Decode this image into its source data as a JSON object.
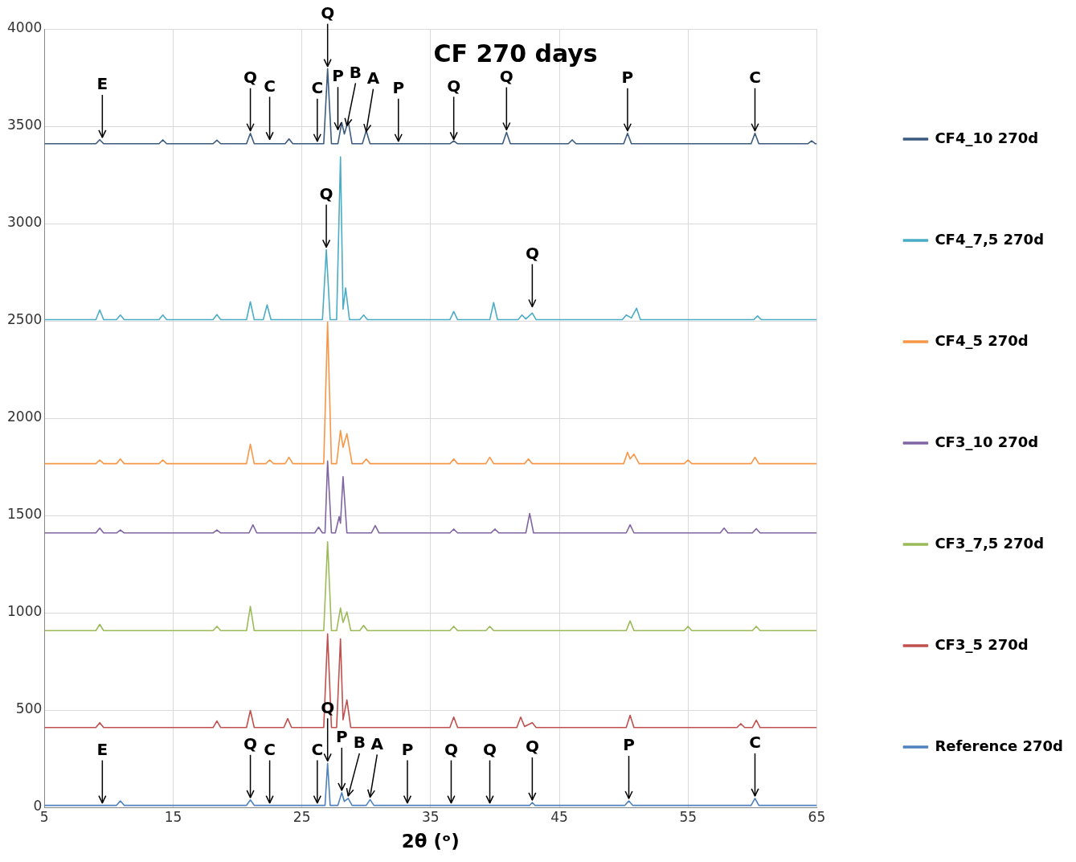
{
  "chart_data": {
    "type": "line",
    "title": "CF 270 days",
    "xlabel": "2θ (ᵒ)",
    "xlim": [
      5,
      65
    ],
    "xticks": [
      5,
      15,
      25,
      35,
      45,
      55,
      65
    ],
    "ylim": [
      0,
      4000
    ],
    "yticks": [
      0,
      500,
      1000,
      1500,
      2000,
      2500,
      3000,
      3500,
      4000
    ],
    "grid": true,
    "legend": "right",
    "marker": "none",
    "line_style": "solid",
    "series": [
      {
        "name": "CF4_10 270d",
        "color": "#3b5a7f",
        "x": [
          5,
          9.0,
          9.3,
          9.6,
          13.9,
          14.2,
          14.5,
          18.1,
          18.4,
          18.7,
          20.7,
          21.0,
          21.3,
          23.7,
          24.0,
          24.3,
          26.7,
          27.0,
          27.3,
          27.8,
          28.1,
          28.3,
          28.6,
          28.9,
          29.7,
          30.0,
          30.3,
          36.5,
          36.8,
          37.1,
          40.6,
          40.9,
          41.2,
          45.7,
          46.0,
          46.3,
          50.0,
          50.3,
          50.6,
          59.9,
          60.2,
          60.5,
          64.3,
          64.6,
          64.9,
          65
        ],
        "values": [
          3410,
          3410,
          3431,
          3410,
          3410,
          3430,
          3410,
          3410,
          3428,
          3410,
          3410,
          3464,
          3410,
          3410,
          3435,
          3410,
          3410,
          3795,
          3410,
          3410,
          3519,
          3460,
          3527,
          3410,
          3410,
          3477,
          3410,
          3410,
          3425,
          3410,
          3410,
          3469,
          3410,
          3410,
          3430,
          3410,
          3410,
          3464,
          3410,
          3410,
          3464,
          3410,
          3410,
          3425,
          3410,
          3410
        ]
      },
      {
        "name": "CF4_7,5 270d",
        "color": "#4bacc6",
        "x": [
          5,
          9.0,
          9.3,
          9.6,
          10.6,
          10.9,
          11.2,
          13.9,
          14.2,
          14.5,
          18.1,
          18.4,
          18.7,
          20.7,
          21.0,
          21.3,
          22.0,
          22.3,
          22.6,
          26.6,
          26.9,
          27.2,
          27.7,
          28.0,
          28.2,
          28.4,
          28.7,
          29.5,
          29.8,
          30.1,
          36.5,
          36.8,
          37.1,
          39.6,
          39.9,
          40.2,
          41.8,
          42.1,
          42.4,
          42.9,
          43.2,
          49.9,
          50.2,
          50.6,
          51.0,
          51.3,
          60.1,
          60.4,
          60.7,
          65
        ],
        "values": [
          2506,
          2506,
          2556,
          2506,
          2506,
          2530,
          2506,
          2506,
          2530,
          2506,
          2506,
          2532,
          2506,
          2506,
          2598,
          2506,
          2506,
          2582,
          2506,
          2506,
          2866,
          2506,
          2506,
          3343,
          2560,
          2669,
          2506,
          2506,
          2530,
          2506,
          2506,
          2548,
          2506,
          2506,
          2594,
          2506,
          2506,
          2530,
          2510,
          2540,
          2506,
          2506,
          2530,
          2515,
          2565,
          2506,
          2506,
          2525,
          2506,
          2506
        ]
      },
      {
        "name": "CF4_5 270d",
        "color": "#f79646",
        "x": [
          5,
          9.0,
          9.3,
          9.6,
          10.6,
          10.9,
          11.2,
          13.9,
          14.2,
          14.5,
          20.7,
          21.0,
          21.3,
          22.2,
          22.5,
          22.8,
          23.7,
          24.0,
          24.3,
          26.7,
          27.0,
          27.3,
          27.7,
          28.0,
          28.2,
          28.5,
          28.9,
          29.7,
          30.0,
          30.3,
          36.5,
          36.8,
          37.1,
          39.3,
          39.6,
          39.9,
          42.3,
          42.6,
          42.9,
          50.0,
          50.3,
          50.5,
          50.8,
          51.2,
          54.7,
          55.0,
          55.3,
          59.9,
          60.2,
          60.5,
          65
        ],
        "values": [
          1766,
          1766,
          1785,
          1766,
          1766,
          1790,
          1766,
          1766,
          1785,
          1766,
          1766,
          1866,
          1766,
          1766,
          1785,
          1766,
          1766,
          1799,
          1766,
          1766,
          2494,
          1766,
          1766,
          1937,
          1850,
          1920,
          1766,
          1766,
          1790,
          1766,
          1766,
          1790,
          1766,
          1766,
          1799,
          1766,
          1766,
          1790,
          1766,
          1766,
          1824,
          1790,
          1815,
          1766,
          1766,
          1785,
          1766,
          1766,
          1799,
          1766,
          1766
        ]
      },
      {
        "name": "CF3_10 270d",
        "color": "#8064a2",
        "x": [
          5,
          9.0,
          9.3,
          9.6,
          10.6,
          10.9,
          11.2,
          18.1,
          18.4,
          18.7,
          20.9,
          21.2,
          21.5,
          26.0,
          26.3,
          26.6,
          26.8,
          27.0,
          27.3,
          27.6,
          27.9,
          28.0,
          28.2,
          28.5,
          30.4,
          30.7,
          31.0,
          36.5,
          36.8,
          37.1,
          39.7,
          40.0,
          40.3,
          42.4,
          42.7,
          43.0,
          50.2,
          50.5,
          50.8,
          57.5,
          57.8,
          58.1,
          60.0,
          60.3,
          60.6,
          65
        ],
        "values": [
          1410,
          1410,
          1435,
          1410,
          1410,
          1425,
          1410,
          1410,
          1425,
          1410,
          1410,
          1452,
          1410,
          1410,
          1440,
          1410,
          1410,
          1780,
          1410,
          1410,
          1494,
          1460,
          1699,
          1410,
          1410,
          1448,
          1410,
          1410,
          1430,
          1410,
          1410,
          1430,
          1410,
          1410,
          1510,
          1410,
          1410,
          1452,
          1410,
          1410,
          1435,
          1410,
          1410,
          1432,
          1410,
          1410
        ]
      },
      {
        "name": "CF3_7,5 270d",
        "color": "#9bbb59",
        "x": [
          5,
          9.0,
          9.3,
          9.6,
          18.1,
          18.4,
          18.7,
          20.7,
          21.0,
          21.3,
          26.7,
          27.0,
          27.3,
          27.7,
          28.0,
          28.2,
          28.5,
          28.8,
          29.5,
          29.8,
          30.1,
          36.5,
          36.8,
          37.1,
          39.3,
          39.6,
          39.9,
          50.2,
          50.5,
          50.8,
          54.7,
          55.0,
          55.3,
          60.0,
          60.3,
          60.6,
          65
        ],
        "values": [
          908,
          908,
          940,
          908,
          908,
          930,
          908,
          908,
          1033,
          908,
          908,
          1364,
          908,
          908,
          1025,
          950,
          1004,
          908,
          908,
          935,
          908,
          908,
          930,
          908,
          908,
          930,
          908,
          908,
          958,
          908,
          908,
          930,
          908,
          908,
          930,
          908,
          908
        ]
      },
      {
        "name": "CF3_5 270d",
        "color": "#c0504d",
        "x": [
          5,
          9.0,
          9.3,
          9.6,
          18.1,
          18.4,
          18.7,
          20.7,
          21.0,
          21.3,
          23.6,
          23.9,
          24.2,
          26.7,
          27.0,
          27.3,
          27.7,
          28.0,
          28.2,
          28.5,
          28.8,
          36.5,
          36.8,
          37.1,
          41.7,
          42.0,
          42.3,
          42.9,
          43.2,
          50.2,
          50.5,
          50.8,
          58.8,
          59.1,
          59.4,
          60.0,
          60.3,
          60.6,
          65
        ],
        "values": [
          410,
          410,
          435,
          410,
          410,
          444,
          410,
          410,
          498,
          410,
          410,
          456,
          410,
          410,
          891,
          410,
          410,
          866,
          450,
          552,
          410,
          410,
          464,
          410,
          410,
          464,
          415,
          435,
          410,
          410,
          473,
          410,
          410,
          430,
          410,
          410,
          448,
          410,
          410
        ]
      },
      {
        "name": "Reference 270d",
        "color": "#4f81bd",
        "x": [
          5,
          10.6,
          10.9,
          11.2,
          20.7,
          21.0,
          21.3,
          26.8,
          27.0,
          27.2,
          27.8,
          28.1,
          28.3,
          28.6,
          28.9,
          30.0,
          30.3,
          30.6,
          42.7,
          42.9,
          43.1,
          50.1,
          50.4,
          50.7,
          59.9,
          60.2,
          60.5,
          65
        ],
        "values": [
          10,
          10,
          33,
          10,
          10,
          38,
          10,
          10,
          226,
          10,
          10,
          75,
          30,
          46,
          10,
          10,
          40,
          10,
          10,
          25,
          10,
          10,
          33,
          10,
          10,
          46,
          10,
          10
        ]
      }
    ],
    "annotations": [
      {
        "text": "E",
        "x": 9.5,
        "y": 3430
      },
      {
        "text": "Q",
        "x": 21.0,
        "y": 3464
      },
      {
        "text": "C",
        "x": 22.5,
        "y": 3420
      },
      {
        "text": "C",
        "x": 26.2,
        "y": 3410
      },
      {
        "text": "Q",
        "x": 27.0,
        "y": 3795
      },
      {
        "text": "P",
        "x": 27.8,
        "y": 3470
      },
      {
        "text": "B",
        "x": 28.5,
        "y": 3490
      },
      {
        "text": "A",
        "x": 30.0,
        "y": 3460
      },
      {
        "text": "P",
        "x": 32.5,
        "y": 3410
      },
      {
        "text": "Q",
        "x": 36.8,
        "y": 3420
      },
      {
        "text": "Q",
        "x": 40.9,
        "y": 3469
      },
      {
        "text": "P",
        "x": 50.3,
        "y": 3464
      },
      {
        "text": "C",
        "x": 60.2,
        "y": 3464
      },
      {
        "text": "Q",
        "x": 26.9,
        "y": 2866
      },
      {
        "text": "Q",
        "x": 42.9,
        "y": 2560
      },
      {
        "text": "E",
        "x": 9.5,
        "y": 10
      },
      {
        "text": "Q",
        "x": 21.0,
        "y": 38
      },
      {
        "text": "C",
        "x": 22.5,
        "y": 10
      },
      {
        "text": "C",
        "x": 26.2,
        "y": 10
      },
      {
        "text": "Q",
        "x": 27.0,
        "y": 226
      },
      {
        "text": "P",
        "x": 28.1,
        "y": 75
      },
      {
        "text": "B",
        "x": 28.6,
        "y": 46
      },
      {
        "text": "A",
        "x": 30.3,
        "y": 40
      },
      {
        "text": "P",
        "x": 33.2,
        "y": 10
      },
      {
        "text": "Q",
        "x": 36.6,
        "y": 10
      },
      {
        "text": "Q",
        "x": 39.6,
        "y": 10
      },
      {
        "text": "Q",
        "x": 42.9,
        "y": 25
      },
      {
        "text": "P",
        "x": 50.4,
        "y": 33
      },
      {
        "text": "C",
        "x": 60.2,
        "y": 46
      }
    ]
  }
}
